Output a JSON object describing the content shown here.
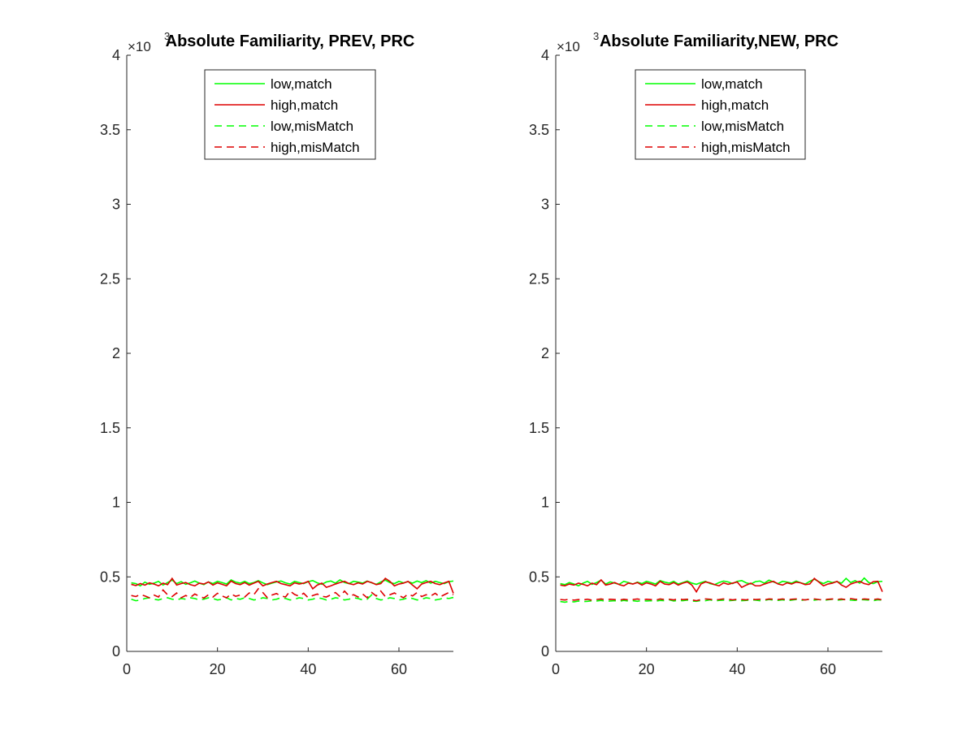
{
  "figure": {
    "background": "#ffffff",
    "axis_color": "#262626"
  },
  "chart_data": [
    {
      "type": "line",
      "title": "Absolute Familiarity, PREV, PRC",
      "xlabel": "",
      "ylabel": "",
      "xlim": [
        0,
        72
      ],
      "ylim": [
        0,
        4000
      ],
      "y_exponent_label": "×10",
      "y_exponent": "3",
      "xticks": [
        0,
        20,
        40,
        60
      ],
      "yticks": [
        0,
        500,
        1000,
        1500,
        2000,
        2500,
        3000,
        3500,
        4000
      ],
      "yticklabels": [
        "0",
        "0.5",
        "1",
        "1.5",
        "2",
        "2.5",
        "3",
        "3.5",
        "4"
      ],
      "grid": false,
      "legend_position": "top",
      "series": [
        {
          "name": "low,match",
          "color": "#00ff00",
          "dash": "solid",
          "values": [
            460,
            455,
            440,
            465,
            450,
            458,
            470,
            445,
            462,
            478,
            455,
            468,
            450,
            460,
            472,
            458,
            448,
            466,
            455,
            470,
            462,
            452,
            480,
            465,
            458,
            470,
            455,
            462,
            475,
            460,
            448,
            458,
            466,
            472,
            460,
            452,
            470,
            462,
            455,
            468,
            475,
            460,
            450,
            466,
            472,
            458,
            480,
            462,
            455,
            470,
            465,
            458,
            472,
            460,
            450,
            466,
            478,
            462,
            455,
            470,
            460,
            468,
            458,
            472,
            462,
            475,
            458,
            470,
            462,
            455,
            468,
            472
          ]
        },
        {
          "name": "high,match",
          "color": "#dd0000",
          "dash": "solid",
          "values": [
            450,
            442,
            455,
            445,
            460,
            452,
            440,
            458,
            448,
            490,
            445,
            455,
            462,
            448,
            440,
            458,
            452,
            466,
            445,
            460,
            450,
            440,
            472,
            455,
            448,
            462,
            445,
            458,
            470,
            440,
            452,
            462,
            470,
            455,
            448,
            440,
            460,
            452,
            458,
            470,
            420,
            445,
            458,
            430,
            440,
            452,
            462,
            470,
            455,
            448,
            460,
            452,
            470,
            462,
            448,
            455,
            490,
            470,
            440,
            452,
            458,
            470,
            445,
            420,
            452,
            462,
            470,
            455,
            448,
            460,
            470,
            390
          ]
        },
        {
          "name": "low,misMatch",
          "color": "#00ff00",
          "dash": "dashed",
          "values": [
            350,
            340,
            345,
            355,
            360,
            350,
            345,
            355,
            360,
            350,
            345,
            355,
            350,
            360,
            355,
            345,
            350,
            360,
            355,
            345,
            350,
            360,
            345,
            355,
            350,
            360,
            355,
            345,
            350,
            360,
            355,
            345,
            350,
            360,
            355,
            345,
            350,
            360,
            355,
            345,
            350,
            360,
            355,
            345,
            350,
            360,
            355,
            345,
            350,
            360,
            355,
            345,
            350,
            380,
            355,
            345,
            350,
            360,
            355,
            345,
            350,
            360,
            355,
            345,
            350,
            360,
            355,
            345,
            350,
            360,
            355,
            362
          ]
        },
        {
          "name": "high,misMatch",
          "color": "#dd0000",
          "dash": "dashed",
          "values": [
            375,
            368,
            382,
            372,
            360,
            378,
            365,
            412,
            380,
            368,
            392,
            360,
            375,
            362,
            385,
            370,
            358,
            380,
            365,
            390,
            372,
            360,
            385,
            370,
            378,
            365,
            392,
            380,
            420,
            395,
            360,
            378,
            388,
            372,
            365,
            405,
            382,
            370,
            390,
            360,
            375,
            385,
            370,
            365,
            380,
            395,
            368,
            405,
            372,
            380,
            365,
            385,
            360,
            395,
            372,
            405,
            368,
            380,
            392,
            375,
            360,
            385,
            372,
            395,
            368,
            380,
            372,
            390,
            365,
            380,
            395,
            380
          ]
        }
      ]
    },
    {
      "type": "line",
      "title": "Absolute Familiarity,NEW, PRC",
      "xlabel": "",
      "ylabel": "",
      "xlim": [
        0,
        72
      ],
      "ylim": [
        0,
        4000
      ],
      "y_exponent_label": "×10",
      "y_exponent": "3",
      "xticks": [
        0,
        20,
        40,
        60
      ],
      "yticks": [
        0,
        500,
        1000,
        1500,
        2000,
        2500,
        3000,
        3500,
        4000
      ],
      "yticklabels": [
        "0",
        "0.5",
        "1",
        "1.5",
        "2",
        "2.5",
        "3",
        "3.5",
        "4"
      ],
      "grid": false,
      "legend_position": "top",
      "series": [
        {
          "name": "low,match",
          "color": "#00ff00",
          "dash": "solid",
          "values": [
            455,
            448,
            462,
            452,
            440,
            458,
            470,
            450,
            462,
            478,
            452,
            466,
            458,
            450,
            470,
            462,
            452,
            465,
            455,
            470,
            462,
            452,
            475,
            465,
            458,
            470,
            452,
            462,
            472,
            458,
            450,
            462,
            470,
            455,
            448,
            462,
            472,
            466,
            455,
            470,
            475,
            460,
            452,
            468,
            472,
            458,
            478,
            466,
            455,
            470,
            465,
            458,
            472,
            460,
            452,
            470,
            485,
            468,
            455,
            470,
            462,
            468,
            458,
            490,
            462,
            475,
            458,
            492,
            462,
            455,
            468,
            470
          ]
        },
        {
          "name": "high,match",
          "color": "#dd0000",
          "dash": "solid",
          "values": [
            445,
            440,
            452,
            445,
            458,
            450,
            440,
            458,
            448,
            480,
            445,
            452,
            462,
            448,
            440,
            458,
            452,
            462,
            445,
            460,
            452,
            440,
            470,
            452,
            448,
            462,
            445,
            458,
            466,
            445,
            400,
            452,
            466,
            460,
            448,
            440,
            460,
            450,
            458,
            466,
            430,
            445,
            458,
            440,
            440,
            452,
            462,
            470,
            452,
            445,
            460,
            452,
            465,
            460,
            448,
            452,
            490,
            465,
            440,
            452,
            458,
            470,
            445,
            430,
            452,
            462,
            470,
            455,
            448,
            468,
            470,
            400
          ]
        },
        {
          "name": "low,misMatch",
          "color": "#00ff00",
          "dash": "dashed",
          "values": [
            335,
            330,
            336,
            332,
            338,
            334,
            336,
            340,
            338,
            342,
            336,
            338,
            340,
            336,
            342,
            338,
            340,
            336,
            342,
            338,
            340,
            336,
            342,
            340,
            346,
            338,
            342,
            340,
            344,
            338,
            336,
            342,
            340,
            346,
            338,
            342,
            344,
            340,
            342,
            346,
            340,
            342,
            346,
            344,
            340,
            342,
            348,
            344,
            342,
            346,
            340,
            344,
            348,
            342,
            346,
            350,
            344,
            348,
            342,
            346,
            350,
            344,
            346,
            350,
            344,
            342,
            348,
            346,
            344,
            340,
            346,
            344
          ]
        },
        {
          "name": "high,misMatch",
          "color": "#dd0000",
          "dash": "dashed",
          "values": [
            348,
            345,
            350,
            344,
            348,
            346,
            350,
            344,
            348,
            352,
            346,
            350,
            348,
            344,
            350,
            346,
            348,
            352,
            346,
            350,
            348,
            344,
            352,
            348,
            350,
            346,
            352,
            348,
            350,
            346,
            340,
            348,
            352,
            350,
            346,
            348,
            352,
            350,
            346,
            350,
            348,
            346,
            352,
            348,
            350,
            346,
            352,
            350,
            348,
            352,
            346,
            350,
            352,
            348,
            346,
            350,
            352,
            348,
            346,
            350,
            352,
            348,
            352,
            346,
            354,
            350,
            348,
            352,
            350,
            348,
            352,
            346
          ]
        }
      ]
    }
  ]
}
